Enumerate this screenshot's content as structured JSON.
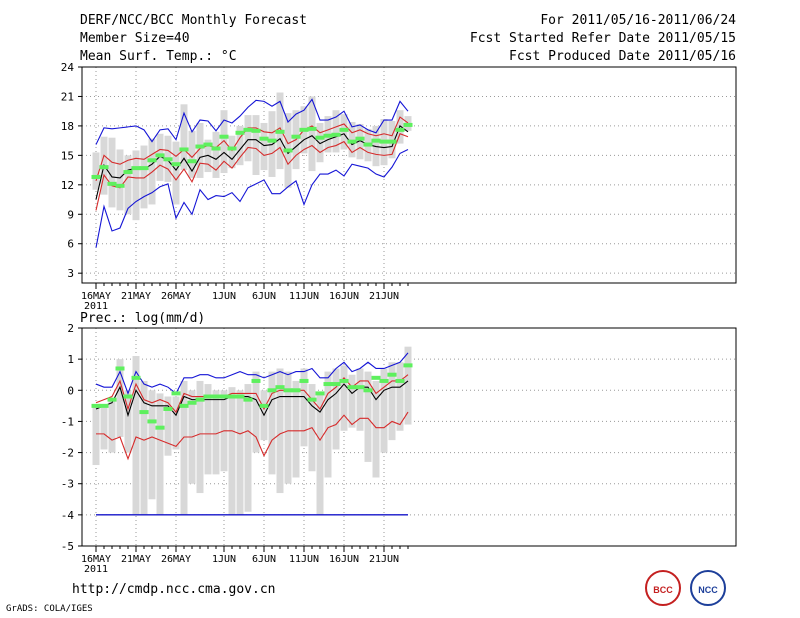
{
  "header": {
    "title": "DERF/NCC/BCC Monthly Forecast",
    "member_size": "Member Size=40",
    "top_variable": "Mean Surf. Temp.: °C",
    "forecast_period": "For 2011/05/16-2011/06/24",
    "fcst_started": "Fcst Started Refer Date 2011/05/15",
    "fcst_produced": "Fcst Produced Date 2011/05/16"
  },
  "footer": {
    "url": "http://cmdp.ncc.cma.gov.cn",
    "credit": "GrADS: COLA/IGES",
    "logo_left": "BCC",
    "logo_right": "NCC"
  },
  "colors": {
    "mean": "#000000",
    "spread": "#d62b2b",
    "extreme": "#1515d6",
    "box": "#d8d8d8",
    "observed": "#5ef05e",
    "grid": "#9a9a9a",
    "threshold": "#1a1a8c"
  },
  "chart_data": [
    {
      "type": "line",
      "title": "Mean Surf. Temp.: °C",
      "x": [
        1,
        2,
        3,
        4,
        5,
        6,
        7,
        8,
        9,
        10,
        11,
        12,
        13,
        14,
        15,
        16,
        17,
        18,
        19,
        20,
        21,
        22,
        23,
        24,
        25,
        26,
        27,
        28,
        29,
        30,
        31,
        32,
        33,
        34,
        35,
        36,
        37,
        38,
        39,
        40
      ],
      "x_tick_labels": [
        "16MAY",
        "21MAY",
        "26MAY",
        "1JUN",
        "6JUN",
        "11JUN",
        "16JUN",
        "21JUN"
      ],
      "x_tick_positions": [
        1,
        6,
        11,
        17,
        22,
        27,
        32,
        37
      ],
      "x_year_label": "2011",
      "ylim": [
        2,
        24
      ],
      "yticks": [
        3,
        6,
        9,
        12,
        15,
        18,
        21,
        24
      ],
      "grid": true,
      "series": [
        {
          "name": "ensemble max",
          "role": "extreme",
          "values": [
            5.6,
            9.8,
            7.3,
            7.6,
            9.6,
            10.3,
            10.8,
            11.2,
            11.8,
            12.1,
            8.6,
            10.2,
            9.0,
            11.5,
            10.5,
            10.9,
            10.8,
            11.2,
            10.3,
            11.7,
            12.1,
            12.5,
            11.1,
            11.1,
            11.8,
            12.4,
            10.0,
            12.0,
            13.1,
            13.1,
            13.5,
            12.9,
            14.1,
            13.9,
            13.7,
            13.1,
            12.8,
            13.8,
            15.2,
            15.6
          ]
        },
        {
          "name": "ensemble min",
          "role": "extreme",
          "values": [
            16.1,
            17.8,
            17.7,
            17.8,
            17.9,
            18.0,
            17.6,
            16.4,
            17.6,
            17.7,
            16.6,
            19.3,
            17.4,
            18.6,
            18.5,
            17.5,
            18.6,
            18.3,
            19.0,
            19.9,
            20.6,
            20.5,
            20.0,
            20.5,
            18.4,
            19.2,
            19.6,
            20.7,
            18.6,
            18.6,
            18.9,
            19.5,
            17.9,
            18.1,
            17.6,
            17.3,
            18.6,
            18.6,
            20.5,
            19.5
          ]
        },
        {
          "name": "upper spread",
          "role": "spread",
          "values": [
            12.4,
            15.0,
            14.3,
            14.1,
            14.5,
            14.7,
            14.6,
            15.1,
            15.6,
            15.5,
            14.9,
            15.6,
            14.8,
            15.7,
            16.0,
            15.8,
            16.5,
            15.5,
            16.8,
            17.8,
            17.8,
            17.4,
            17.3,
            17.8,
            16.2,
            16.6,
            17.6,
            18.0,
            17.3,
            17.6,
            17.9,
            18.2,
            17.3,
            17.6,
            17.2,
            17.0,
            17.2,
            17.0,
            18.9,
            18.3
          ]
        },
        {
          "name": "ensemble mean",
          "role": "mean",
          "values": [
            10.5,
            14.0,
            12.8,
            12.7,
            13.5,
            13.7,
            13.6,
            14.1,
            14.9,
            14.5,
            13.5,
            14.7,
            13.4,
            14.8,
            15.0,
            14.6,
            15.3,
            14.6,
            15.6,
            16.6,
            16.6,
            16.0,
            16.1,
            16.7,
            15.2,
            15.9,
            16.6,
            17.0,
            16.2,
            16.6,
            16.9,
            17.2,
            16.1,
            16.5,
            16.1,
            15.9,
            15.8,
            15.9,
            18.0,
            17.4
          ]
        },
        {
          "name": "lower spread",
          "role": "spread",
          "values": [
            9.4,
            13.0,
            11.9,
            11.7,
            12.8,
            12.7,
            12.7,
            13.3,
            14.0,
            13.6,
            12.5,
            13.6,
            12.3,
            14.2,
            14.1,
            13.5,
            14.4,
            13.7,
            14.8,
            15.8,
            15.7,
            15.0,
            15.2,
            15.8,
            14.1,
            15.0,
            15.6,
            16.0,
            15.3,
            15.8,
            16.0,
            16.4,
            15.3,
            15.8,
            15.3,
            15.1,
            15.0,
            15.1,
            17.2,
            16.9
          ]
        }
      ],
      "boxes": [
        {
          "x": 1,
          "lo": 11.5,
          "hi": 15.3
        },
        {
          "x": 2,
          "lo": 11.0,
          "hi": 16.9
        },
        {
          "x": 3,
          "lo": 9.7,
          "hi": 16.8
        },
        {
          "x": 4,
          "lo": 9.4,
          "hi": 15.6
        },
        {
          "x": 5,
          "lo": 9.0,
          "hi": 15.0
        },
        {
          "x": 6,
          "lo": 8.4,
          "hi": 15.5
        },
        {
          "x": 7,
          "lo": 9.6,
          "hi": 16.0
        },
        {
          "x": 8,
          "lo": 10.0,
          "hi": 16.7
        },
        {
          "x": 9,
          "lo": 12.4,
          "hi": 17.2
        },
        {
          "x": 10,
          "lo": 12.3,
          "hi": 17.0
        },
        {
          "x": 11,
          "lo": 10.0,
          "hi": 16.4
        },
        {
          "x": 12,
          "lo": 13.5,
          "hi": 20.2
        },
        {
          "x": 13,
          "lo": 12.7,
          "hi": 17.5
        },
        {
          "x": 14,
          "lo": 12.7,
          "hi": 18.3
        },
        {
          "x": 15,
          "lo": 13.3,
          "hi": 16.6
        },
        {
          "x": 16,
          "lo": 12.7,
          "hi": 17.4
        },
        {
          "x": 17,
          "lo": 13.2,
          "hi": 19.6
        },
        {
          "x": 18,
          "lo": 13.7,
          "hi": 17.0
        },
        {
          "x": 19,
          "lo": 14.0,
          "hi": 18.0
        },
        {
          "x": 20,
          "lo": 14.4,
          "hi": 19.1
        },
        {
          "x": 21,
          "lo": 13.0,
          "hi": 19.1
        },
        {
          "x": 22,
          "lo": 13.5,
          "hi": 18.3
        },
        {
          "x": 23,
          "lo": 12.8,
          "hi": 19.5
        },
        {
          "x": 24,
          "lo": 13.6,
          "hi": 21.4
        },
        {
          "x": 25,
          "lo": 11.7,
          "hi": 19.3
        },
        {
          "x": 26,
          "lo": 13.6,
          "hi": 19.6
        },
        {
          "x": 27,
          "lo": 15.2,
          "hi": 20.0
        },
        {
          "x": 28,
          "lo": 13.4,
          "hi": 21.0
        },
        {
          "x": 29,
          "lo": 14.3,
          "hi": 18.3
        },
        {
          "x": 30,
          "lo": 15.3,
          "hi": 19.0
        },
        {
          "x": 31,
          "lo": 15.3,
          "hi": 19.6
        },
        {
          "x": 32,
          "lo": 15.6,
          "hi": 19.2
        },
        {
          "x": 33,
          "lo": 14.8,
          "hi": 18.4
        },
        {
          "x": 34,
          "lo": 14.6,
          "hi": 18.2
        },
        {
          "x": 35,
          "lo": 14.4,
          "hi": 17.7
        },
        {
          "x": 36,
          "lo": 13.9,
          "hi": 18.0
        },
        {
          "x": 37,
          "lo": 14.0,
          "hi": 18.7
        },
        {
          "x": 38,
          "lo": 14.7,
          "hi": 18.5
        },
        {
          "x": 39,
          "lo": 16.2,
          "hi": 19.6
        },
        {
          "x": 40,
          "lo": 17.5,
          "hi": 19.0
        }
      ],
      "observed": [
        12.8,
        13.8,
        12.1,
        11.9,
        13.3,
        13.7,
        13.7,
        14.5,
        15.0,
        14.6,
        14.1,
        15.6,
        14.4,
        15.9,
        16.1,
        15.7,
        16.9,
        15.7,
        17.3,
        17.6,
        17.5,
        16.7,
        16.5,
        17.4,
        15.5,
        16.9,
        17.6,
        17.7,
        16.8,
        17.0,
        17.1,
        17.6,
        16.4,
        16.7,
        16.1,
        16.5,
        16.4,
        16.4,
        17.6,
        18.1
      ]
    },
    {
      "type": "line",
      "title": "Prec.: log(mm/d)",
      "x": [
        1,
        2,
        3,
        4,
        5,
        6,
        7,
        8,
        9,
        10,
        11,
        12,
        13,
        14,
        15,
        16,
        17,
        18,
        19,
        20,
        21,
        22,
        23,
        24,
        25,
        26,
        27,
        28,
        29,
        30,
        31,
        32,
        33,
        34,
        35,
        36,
        37,
        38,
        39,
        40
      ],
      "x_tick_labels": [
        "16MAY",
        "21MAY",
        "26MAY",
        "1JUN",
        "6JUN",
        "11JUN",
        "16JUN",
        "21JUN"
      ],
      "x_tick_positions": [
        1,
        6,
        11,
        17,
        22,
        27,
        32,
        37
      ],
      "x_year_label": "2011",
      "ylim": [
        -5,
        2
      ],
      "yticks": [
        -5,
        -4,
        -3,
        -2,
        -1,
        0,
        1,
        2
      ],
      "grid": true,
      "threshold": -4,
      "series": [
        {
          "name": "ensemble max",
          "role": "extreme",
          "values": [
            0.2,
            0.1,
            0.1,
            0.6,
            -0.1,
            0.6,
            0.2,
            0.1,
            0.2,
            0.1,
            -0.1,
            0.4,
            0.4,
            0.5,
            0.5,
            0.4,
            0.4,
            0.5,
            0.6,
            0.5,
            0.5,
            0.4,
            0.5,
            0.6,
            0.5,
            0.6,
            0.6,
            0.7,
            0.4,
            0.4,
            0.7,
            0.9,
            0.6,
            0.7,
            0.9,
            0.7,
            0.7,
            0.8,
            0.9,
            1.2
          ]
        },
        {
          "name": "upper spread",
          "role": "spread",
          "values": [
            -0.4,
            -0.3,
            -0.2,
            0.3,
            -0.6,
            0.2,
            -0.3,
            -0.4,
            -0.3,
            -0.4,
            -0.7,
            -0.1,
            -0.2,
            -0.2,
            -0.2,
            -0.2,
            -0.2,
            -0.1,
            -0.1,
            -0.1,
            -0.1,
            -0.6,
            -0.1,
            0.0,
            0.0,
            0.0,
            0.0,
            -0.3,
            -0.6,
            -0.1,
            0.1,
            0.4,
            0.1,
            0.3,
            0.3,
            -0.1,
            0.1,
            0.3,
            0.3,
            0.5
          ]
        },
        {
          "name": "ensemble mean",
          "role": "mean",
          "values": [
            -0.6,
            -0.5,
            -0.4,
            0.1,
            -0.8,
            0.0,
            -0.4,
            -0.5,
            -0.5,
            -0.5,
            -0.8,
            -0.2,
            -0.3,
            -0.3,
            -0.3,
            -0.3,
            -0.3,
            -0.2,
            -0.2,
            -0.2,
            -0.3,
            -0.8,
            -0.3,
            -0.2,
            -0.2,
            -0.2,
            -0.2,
            -0.5,
            -0.7,
            -0.3,
            -0.1,
            0.2,
            -0.1,
            0.1,
            0.1,
            -0.3,
            0.0,
            0.1,
            0.1,
            0.3
          ]
        },
        {
          "name": "lower spread",
          "role": "spread",
          "values": [
            -1.4,
            -1.4,
            -1.6,
            -1.5,
            -2.2,
            -1.5,
            -1.6,
            -1.5,
            -1.6,
            -1.7,
            -1.8,
            -1.5,
            -1.5,
            -1.4,
            -1.4,
            -1.4,
            -1.3,
            -1.3,
            -1.4,
            -1.3,
            -1.5,
            -2.1,
            -1.6,
            -1.4,
            -1.3,
            -1.3,
            -1.3,
            -1.2,
            -1.6,
            -1.2,
            -1.1,
            -0.8,
            -1.1,
            -0.9,
            -0.9,
            -1.2,
            -1.2,
            -1.0,
            -1.1,
            -0.7
          ]
        },
        {
          "name": "ensemble min",
          "role": "extreme",
          "values": [
            -4.0,
            -4.0,
            -4.0,
            -4.0,
            -4.0,
            -4.0,
            -4.0,
            -4.0,
            -4.0,
            -4.0,
            -4.0,
            -4.0,
            -4.0,
            -4.0,
            -4.0,
            -4.0,
            -4.0,
            -4.0,
            -4.0,
            -4.0,
            -4.0,
            -4.0,
            -4.0,
            -4.0,
            -4.0,
            -4.0,
            -4.0,
            -4.0,
            -4.0,
            -4.0,
            -4.0,
            -4.0,
            -4.0,
            -4.0,
            -4.0,
            -4.0,
            -4.0,
            -4.0,
            -4.0,
            -4.0
          ]
        }
      ],
      "boxes": [
        {
          "x": 1,
          "lo": -2.4,
          "hi": -0.5
        },
        {
          "x": 2,
          "lo": -1.9,
          "hi": -0.5
        },
        {
          "x": 3,
          "lo": -2.0,
          "hi": -0.3
        },
        {
          "x": 4,
          "lo": -1.5,
          "hi": 1.0
        },
        {
          "x": 5,
          "lo": -2.0,
          "hi": 0.0
        },
        {
          "x": 6,
          "lo": -4.0,
          "hi": 1.1
        },
        {
          "x": 7,
          "lo": -4.0,
          "hi": 0.3
        },
        {
          "x": 8,
          "lo": -3.5,
          "hi": 0.0
        },
        {
          "x": 9,
          "lo": -4.0,
          "hi": -0.1
        },
        {
          "x": 10,
          "lo": -2.1,
          "hi": -0.2
        },
        {
          "x": 11,
          "lo": -1.9,
          "hi": -0.2
        },
        {
          "x": 12,
          "lo": -4.0,
          "hi": 0.3
        },
        {
          "x": 13,
          "lo": -3.0,
          "hi": 0.0
        },
        {
          "x": 14,
          "lo": -3.3,
          "hi": 0.3
        },
        {
          "x": 15,
          "lo": -2.7,
          "hi": 0.2
        },
        {
          "x": 16,
          "lo": -2.7,
          "hi": 0.0
        },
        {
          "x": 17,
          "lo": -2.6,
          "hi": 0.0
        },
        {
          "x": 18,
          "lo": -4.0,
          "hi": 0.1
        },
        {
          "x": 19,
          "lo": -4.0,
          "hi": 0.0
        },
        {
          "x": 20,
          "lo": -3.9,
          "hi": 0.2
        },
        {
          "x": 21,
          "lo": -2.0,
          "hi": 0.6
        },
        {
          "x": 22,
          "lo": -1.6,
          "hi": 0.0
        },
        {
          "x": 23,
          "lo": -2.7,
          "hi": 0.6
        },
        {
          "x": 24,
          "lo": -3.3,
          "hi": 0.7
        },
        {
          "x": 25,
          "lo": -3.0,
          "hi": 0.6
        },
        {
          "x": 26,
          "lo": -2.8,
          "hi": 0.3
        },
        {
          "x": 27,
          "lo": -1.8,
          "hi": 0.7
        },
        {
          "x": 28,
          "lo": -2.6,
          "hi": 0.2
        },
        {
          "x": 29,
          "lo": -4.0,
          "hi": -0.1
        },
        {
          "x": 30,
          "lo": -2.8,
          "hi": 0.6
        },
        {
          "x": 31,
          "lo": -1.9,
          "hi": 0.7
        },
        {
          "x": 32,
          "lo": -1.3,
          "hi": 0.8
        },
        {
          "x": 33,
          "lo": -1.2,
          "hi": 0.5
        },
        {
          "x": 34,
          "lo": -1.3,
          "hi": 0.7
        },
        {
          "x": 35,
          "lo": -2.3,
          "hi": 0.6
        },
        {
          "x": 36,
          "lo": -2.8,
          "hi": 0.3
        },
        {
          "x": 37,
          "lo": -2.0,
          "hi": 0.7
        },
        {
          "x": 38,
          "lo": -1.6,
          "hi": 0.9
        },
        {
          "x": 39,
          "lo": -1.3,
          "hi": 0.9
        },
        {
          "x": 40,
          "lo": -1.1,
          "hi": 1.4
        }
      ],
      "observed": [
        -0.5,
        -0.5,
        -0.3,
        0.7,
        -0.2,
        0.4,
        -0.7,
        -1.0,
        -1.2,
        -0.6,
        -0.1,
        -0.5,
        -0.4,
        -0.3,
        -0.2,
        -0.2,
        -0.2,
        -0.2,
        -0.2,
        -0.3,
        0.3,
        -0.5,
        0.0,
        0.1,
        0.0,
        0.0,
        0.3,
        -0.3,
        -0.1,
        0.2,
        0.2,
        0.3,
        0.1,
        0.1,
        0.0,
        0.4,
        0.3,
        0.5,
        0.3,
        0.8
      ]
    }
  ]
}
